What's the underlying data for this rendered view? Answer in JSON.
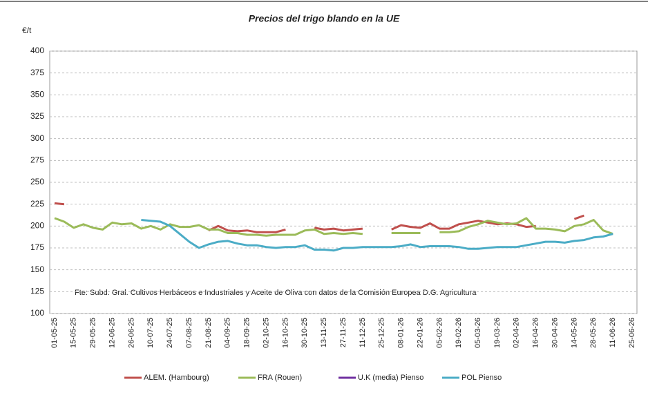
{
  "chart_data": {
    "type": "line",
    "title": "Precios del trigo blando en la UE",
    "y_unit": "€/t",
    "annotation": "Fte: Subd. Gral. Cultivos Herbáceos e Industriales y Aceite de Oliva con  datos de la Comisión Europea D.G. Agricultura",
    "categories": [
      "01-05-25",
      null,
      "15-05-25",
      null,
      "29-05-25",
      null,
      "12-06-25",
      null,
      "26-06-25",
      null,
      "10-07-25",
      null,
      "24-07-25",
      null,
      "07-08-25",
      null,
      "21-08-25",
      null,
      "04-09-25",
      null,
      "18-09-25",
      null,
      "02-10-25",
      null,
      "16-10-25",
      null,
      "30-10-25",
      null,
      "13-11-25",
      null,
      "27-11-25",
      null,
      "11-12-25",
      null,
      "25-12-25",
      null,
      "08-01-26",
      null,
      "22-01-26",
      null,
      "05-02-26",
      null,
      "19-02-26",
      null,
      "05-03-26",
      null,
      "19-03-26",
      null,
      "02-04-26",
      null,
      "16-04-26",
      null,
      "30-04-26",
      null,
      "14-05-26",
      null,
      "28-05-26",
      null,
      "11-06-26",
      null,
      "25-06-26"
    ],
    "series": [
      {
        "name": "ALEM. (Hambourg)",
        "color": "#c0504d",
        "values": [
          226,
          225,
          null,
          null,
          null,
          null,
          null,
          null,
          null,
          null,
          null,
          null,
          null,
          null,
          null,
          null,
          195,
          200,
          195,
          194,
          195,
          193,
          193,
          193,
          196,
          null,
          null,
          198,
          196,
          197,
          195,
          196,
          197,
          null,
          null,
          196,
          201,
          199,
          198,
          203,
          197,
          197,
          202,
          204,
          206,
          204,
          202,
          203,
          202,
          199,
          200,
          null,
          null,
          null,
          208,
          212,
          null,
          null,
          null,
          null,
          null
        ]
      },
      {
        "name": "FRA (Rouen)",
        "color": "#9bbb59",
        "values": [
          209,
          205,
          198,
          202,
          198,
          196,
          204,
          202,
          203,
          197,
          200,
          196,
          202,
          199,
          199,
          201,
          196,
          196,
          192,
          192,
          190,
          190,
          189,
          190,
          190,
          190,
          195,
          196,
          191,
          192,
          191,
          192,
          191,
          null,
          null,
          192,
          192,
          192,
          192,
          null,
          193,
          193,
          194,
          199,
          202,
          206,
          204,
          202,
          203,
          209,
          197,
          197,
          196,
          194,
          200,
          202,
          207,
          195,
          191,
          null,
          null
        ]
      },
      {
        "name": "U.K (media) Pienso",
        "color": "#7030a0",
        "values": [
          null,
          null,
          null,
          null,
          null,
          null,
          null,
          null,
          null,
          null,
          null,
          null,
          null,
          null,
          null,
          null,
          null,
          null,
          null,
          null,
          null,
          null,
          null,
          null,
          null,
          null,
          null,
          null,
          null,
          null,
          null,
          null,
          null,
          null,
          null,
          null,
          null,
          null,
          null,
          null,
          null,
          null,
          null,
          null,
          null,
          null,
          null,
          null,
          null,
          null,
          null,
          null,
          null,
          null,
          null,
          null,
          null,
          null,
          null,
          null,
          null
        ]
      },
      {
        "name": "POL  Pienso",
        "color": "#4bacc6",
        "values": [
          null,
          null,
          null,
          null,
          null,
          null,
          null,
          null,
          null,
          207,
          206,
          205,
          200,
          191,
          182,
          175,
          179,
          182,
          183,
          180,
          178,
          178,
          176,
          175,
          176,
          176,
          178,
          173,
          173,
          172,
          175,
          175,
          176,
          176,
          176,
          176,
          177,
          179,
          176,
          177,
          177,
          177,
          176,
          174,
          174,
          175,
          176,
          176,
          176,
          178,
          180,
          182,
          182,
          181,
          183,
          184,
          187,
          188,
          191,
          null,
          null
        ]
      }
    ],
    "ylim": [
      100,
      400
    ],
    "yticks": [
      100,
      125,
      150,
      175,
      200,
      225,
      250,
      275,
      300,
      325,
      350,
      375,
      400
    ],
    "grid": true
  }
}
